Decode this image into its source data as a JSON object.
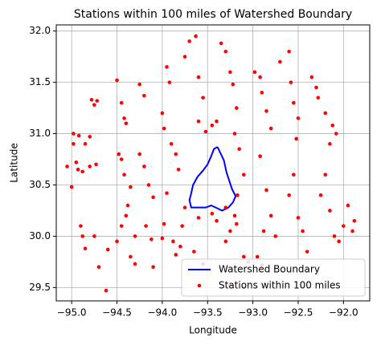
{
  "chart_data": {
    "type": "scatter",
    "title": "Stations within 100 miles of Watershed Boundary",
    "x_label": "Longitude",
    "y_label": "Latitude",
    "xlim": [
      -95.17,
      -91.71
    ],
    "ylim": [
      29.37,
      32.06
    ],
    "xticks": [
      {
        "value": -95.0,
        "label": "−95.0"
      },
      {
        "value": -94.5,
        "label": "−94.5"
      },
      {
        "value": -94.0,
        "label": "−94.0"
      },
      {
        "value": -93.5,
        "label": "−93.5"
      },
      {
        "value": -93.0,
        "label": "−93.0"
      },
      {
        "value": -92.5,
        "label": "−92.5"
      },
      {
        "value": -92.0,
        "label": "−92.0"
      }
    ],
    "yticks": [
      29.5,
      {
        "value": 30.0,
        "label": "30.0"
      },
      30.5,
      {
        "value": 31.0,
        "label": "31.0"
      },
      31.5,
      {
        "value": 32.0,
        "label": "32.0"
      }
    ],
    "grid": true,
    "legend": "lower right",
    "series": [
      {
        "name": "Watershed Boundary",
        "type": "line",
        "color": "#0000ff",
        "x": [
          -93.39,
          -93.32,
          -93.29,
          -93.23,
          -93.19,
          -93.22,
          -93.27,
          -93.34,
          -93.41,
          -93.46,
          -93.52,
          -93.62,
          -93.68,
          -93.7,
          -93.68,
          -93.66,
          -93.61,
          -93.55,
          -93.5,
          -93.46,
          -93.43,
          -93.39
        ],
        "y": [
          30.87,
          30.74,
          30.62,
          30.46,
          30.39,
          30.33,
          30.28,
          30.25,
          30.28,
          30.3,
          30.28,
          30.28,
          30.28,
          30.35,
          30.42,
          30.5,
          30.58,
          30.64,
          30.7,
          30.78,
          30.85,
          30.87
        ]
      },
      {
        "name": "Stations within 100 miles",
        "type": "scatter",
        "color": "#ff0000",
        "x": [
          -95.05,
          -95.0,
          -94.98,
          -94.92,
          -94.95,
          -94.93,
          -94.88,
          -94.98,
          -94.9,
          -94.88,
          -94.85,
          -94.75,
          -94.7,
          -94.62,
          -94.6,
          -94.78,
          -94.75,
          -94.72,
          -94.8,
          -94.73,
          -94.85,
          -94.8,
          -94.5,
          -94.45,
          -94.42,
          -94.4,
          -94.48,
          -94.45,
          -94.42,
          -94.35,
          -94.38,
          -94.4,
          -94.45,
          -94.3,
          -94.5,
          -94.35,
          -94.3,
          -94.25,
          -94.2,
          -94.25,
          -94.2,
          -94.15,
          -94.1,
          -94.18,
          -94.12,
          -94.1,
          -93.95,
          -93.92,
          -94.0,
          -93.98,
          -93.9,
          -93.85,
          -93.82,
          -93.95,
          -93.98,
          -94.0,
          -93.88,
          -93.85,
          -93.8,
          -93.75,
          -93.7,
          -93.63,
          -93.6,
          -93.55,
          -93.6,
          -93.52,
          -93.45,
          -93.4,
          -93.35,
          -93.3,
          -93.25,
          -93.22,
          -93.18,
          -93.2,
          -93.15,
          -93.1,
          -93.17,
          -93.2,
          -93.18,
          -93.25,
          -93.3,
          -93.1,
          -93.05,
          -92.95,
          -92.9,
          -92.98,
          -92.92,
          -92.9,
          -92.85,
          -92.8,
          -92.92,
          -92.85,
          -92.8,
          -92.88,
          -92.75,
          -92.7,
          -92.6,
          -92.58,
          -92.55,
          -92.5,
          -92.52,
          -92.55,
          -92.6,
          -92.5,
          -92.45,
          -92.4,
          -92.35,
          -92.3,
          -92.28,
          -92.2,
          -92.15,
          -92.2,
          -92.25,
          -92.15,
          -92.1,
          -92.05,
          -92.0,
          -91.95,
          -91.9,
          -91.88,
          -92.08,
          -92.12,
          -93.4,
          -93.3,
          -93.45,
          -93.6,
          -93.75,
          -93.78,
          -93.65,
          -93.55,
          -93.25,
          -93.1
        ],
        "y": [
          30.68,
          30.48,
          31.0,
          30.98,
          30.72,
          30.65,
          30.63,
          30.9,
          30.1,
          30.0,
          29.88,
          30.0,
          29.7,
          29.47,
          29.87,
          31.33,
          31.28,
          31.32,
          30.68,
          30.7,
          30.9,
          30.97,
          31.52,
          31.3,
          31.15,
          31.1,
          30.8,
          30.75,
          30.6,
          30.48,
          30.3,
          30.2,
          30.1,
          30.0,
          29.95,
          29.8,
          29.73,
          31.48,
          31.37,
          30.8,
          30.68,
          30.5,
          30.38,
          30.1,
          29.97,
          29.7,
          31.65,
          31.5,
          31.2,
          31.05,
          30.9,
          30.8,
          30.65,
          30.42,
          30.12,
          29.98,
          29.95,
          29.82,
          29.9,
          31.75,
          31.9,
          31.95,
          31.55,
          31.35,
          31.12,
          31.02,
          31.08,
          31.12,
          31.88,
          31.8,
          31.6,
          31.48,
          31.25,
          31.0,
          30.85,
          30.6,
          30.4,
          30.2,
          30.12,
          30.05,
          29.95,
          29.8,
          29.75,
          29.8,
          29.72,
          31.6,
          31.55,
          31.4,
          31.22,
          31.05,
          30.78,
          30.45,
          30.2,
          30.05,
          30.0,
          31.7,
          31.8,
          31.5,
          31.3,
          31.15,
          30.95,
          30.6,
          30.4,
          30.18,
          30.05,
          29.85,
          31.55,
          31.45,
          31.35,
          31.2,
          30.9,
          30.6,
          30.4,
          30.25,
          30.0,
          29.95,
          30.1,
          30.3,
          30.05,
          30.15,
          31.0,
          31.08,
          30.15,
          30.28,
          30.22,
          30.18,
          30.28,
          30.1,
          29.85,
          29.73,
          29.52,
          29.5
        ]
      }
    ]
  }
}
